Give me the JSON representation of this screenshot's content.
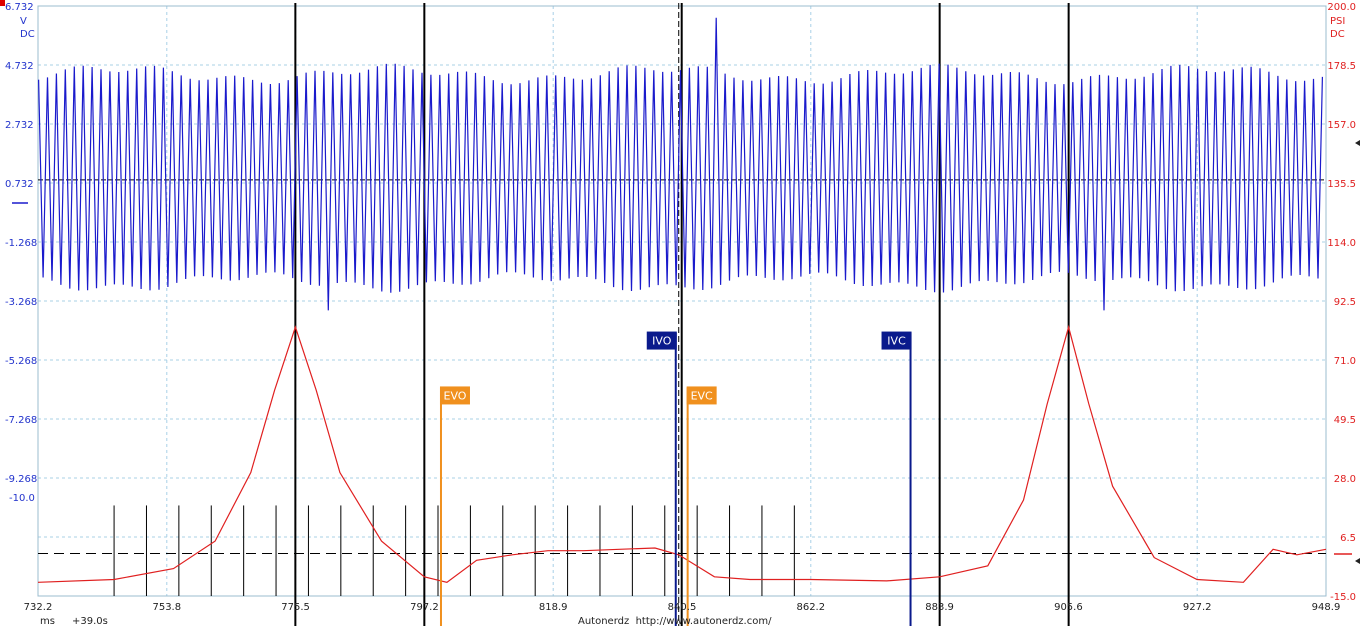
{
  "colors": {
    "voltage_trace": "#1a1acc",
    "pressure_trace": "#e02020",
    "grid": "#a8d0e6",
    "exhaust_marker": "#f0901e",
    "intake_marker": "#0a1a8c",
    "cursor": "#000000"
  },
  "chart_data": {
    "type": "line",
    "x_axis": {
      "unit": "ms",
      "offset": "+39.0s",
      "range": [
        732.2,
        948.9
      ],
      "ticks": [
        "732.2",
        "753.8",
        "775.5",
        "797.2",
        "818.9",
        "840.5",
        "862.2",
        "883.9",
        "905.6",
        "927.2",
        "948.9"
      ]
    },
    "left_axis": {
      "unit": "V",
      "coupling": "DC",
      "range": [
        -10.0,
        6.732
      ],
      "ticks": [
        "6.732",
        "4.732",
        "2.732",
        "0.732",
        "-1.268",
        "-3.268",
        "-5.268",
        "-7.268",
        "-9.268"
      ],
      "bottom_label": "-10.0"
    },
    "right_axis": {
      "unit": "PSI",
      "coupling": "DC",
      "range": [
        -15.0,
        200.0
      ],
      "ticks": [
        "200.0",
        "178.5",
        "157.0",
        "135.5",
        "114.0",
        "92.5",
        "71.0",
        "49.5",
        "28.0",
        "6.5",
        "-15.0"
      ]
    },
    "series": [
      {
        "axis": "left",
        "kind": "alternating ripple signal",
        "center_v": 1.8,
        "high_v": 4.8,
        "low_v": -1.1,
        "period_ms": 1.5,
        "sync_spikes_ms": [
          781.0,
          846.5,
          911.5
        ],
        "sync_spike_peak_v": 6.4
      },
      {
        "axis": "right",
        "kind": "in-cylinder pressure waveform",
        "points": [
          [
            732.2,
            -10.0
          ],
          [
            745.0,
            -9.0
          ],
          [
            755.0,
            -5.0
          ],
          [
            762.0,
            5.0
          ],
          [
            768.0,
            30.0
          ],
          [
            772.0,
            60.0
          ],
          [
            775.5,
            83.0
          ],
          [
            779.0,
            60.0
          ],
          [
            783.0,
            30.0
          ],
          [
            790.0,
            5.0
          ],
          [
            797.2,
            -8.0
          ],
          [
            801.0,
            -10.0
          ],
          [
            806.0,
            -2.0
          ],
          [
            812.0,
            0.0
          ],
          [
            818.0,
            1.5
          ],
          [
            824.0,
            1.5
          ],
          [
            830.0,
            2.0
          ],
          [
            836.0,
            2.5
          ],
          [
            840.0,
            0.0
          ],
          [
            846.0,
            -8.0
          ],
          [
            852.0,
            -9.0
          ],
          [
            862.2,
            -9.0
          ],
          [
            875.0,
            -9.5
          ],
          [
            883.9,
            -8.0
          ],
          [
            892.0,
            -4.0
          ],
          [
            898.0,
            20.0
          ],
          [
            902.0,
            55.0
          ],
          [
            905.6,
            83.0
          ],
          [
            909.0,
            55.0
          ],
          [
            913.0,
            25.0
          ],
          [
            920.0,
            -1.0
          ],
          [
            927.2,
            -9.0
          ],
          [
            935.0,
            -10.0
          ],
          [
            940.0,
            2.0
          ],
          [
            944.0,
            0.0
          ],
          [
            948.9,
            2.0
          ]
        ]
      }
    ],
    "trigger_level_psi": 0.5,
    "ripple_midline_v": 1.8,
    "cursor_lines_ms": [
      775.5,
      797.2,
      840.5,
      883.9,
      905.6
    ],
    "dashed_cursor_ms": 840.0,
    "rulers": {
      "start_ms": 745.0,
      "spacing_ms": 5.45,
      "count": 22,
      "top_psi": 18.0
    },
    "markers": [
      {
        "label": "EVO",
        "x_ms": 800.0,
        "psi": 61.0,
        "group": "exhaust"
      },
      {
        "label": "IVO",
        "x_ms": 839.5,
        "psi": 81.0,
        "group": "intake"
      },
      {
        "label": "EVC",
        "x_ms": 841.5,
        "psi": 61.0,
        "group": "exhaust"
      },
      {
        "label": "IVC",
        "x_ms": 879.0,
        "psi": 81.0,
        "group": "intake"
      }
    ]
  },
  "footer": {
    "unit": "ms",
    "offset": "+39.0s",
    "credit": "Autonerdz  http://www.autonerdz.com/"
  }
}
